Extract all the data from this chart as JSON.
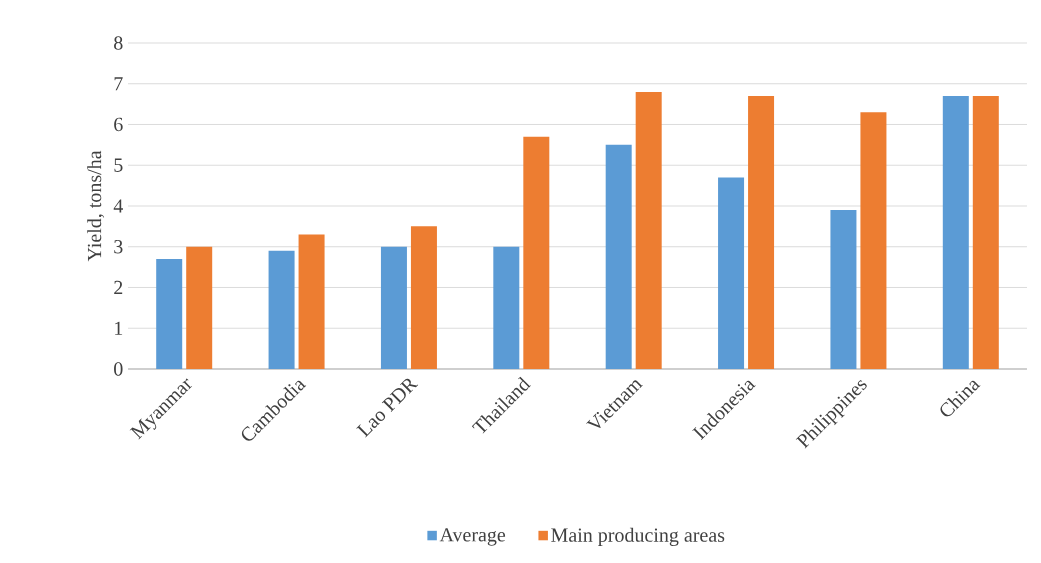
{
  "chart_data": {
    "type": "bar",
    "ylabel": "Yield,  tons/ha",
    "categories": [
      "Myanmar",
      "Cambodia",
      "Lao PDR",
      "Thailand",
      "Vietnam",
      "Indonesia",
      "Philippines",
      "China"
    ],
    "series": [
      {
        "name": "Average",
        "color": "#5b9bd5",
        "values": [
          2.7,
          2.9,
          3.0,
          3.0,
          5.5,
          4.7,
          3.9,
          6.7
        ]
      },
      {
        "name": "Main producing areas",
        "color": "#ed7d31",
        "values": [
          3.0,
          3.3,
          3.5,
          5.7,
          6.8,
          6.7,
          6.3,
          6.7
        ]
      }
    ],
    "ylim": [
      0,
      8
    ],
    "yticks": [
      0,
      1,
      2,
      3,
      4,
      5,
      6,
      7,
      8
    ],
    "grid": "y",
    "legend": "bottom"
  }
}
